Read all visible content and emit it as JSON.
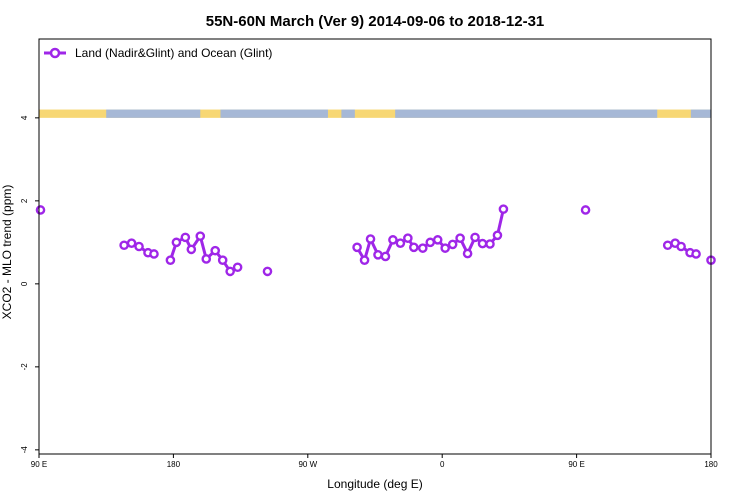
{
  "colors": {
    "series": "#9f26e8",
    "band_ocean": "#a6b8d6",
    "band_land": "#f7d774",
    "axis": "#000000",
    "background": "#ffffff"
  },
  "chart_data": {
    "type": "line",
    "title": "55N-60N March (Ver 9)   2014-09-06 to 2018-12-31",
    "xlabel": "Longitude (deg E)",
    "ylabel": "XCO2 - MLO trend (ppm)",
    "x_ticks": [
      {
        "value": 90,
        "label": "90 E"
      },
      {
        "value": 180,
        "label": "180"
      },
      {
        "value": 270,
        "label": "90 W"
      },
      {
        "value": 360,
        "label": "0"
      },
      {
        "value": 450,
        "label": "90 E"
      },
      {
        "value": 540,
        "label": "180"
      }
    ],
    "y_ticks": [
      {
        "value": -4,
        "label": "-4"
      },
      {
        "value": -2,
        "label": "-2"
      },
      {
        "value": 0,
        "label": "0"
      },
      {
        "value": 2,
        "label": "2"
      },
      {
        "value": 4,
        "label": "4"
      }
    ],
    "xlim": [
      90,
      540
    ],
    "ylim": [
      -4.1,
      5.9
    ],
    "legend": {
      "position": "top-left",
      "entries": [
        "Land (Nadir&Glint) and Ocean (Glint)"
      ]
    },
    "land_ocean_band": {
      "y_bottom": 4.0,
      "y_top": 4.2
    },
    "series": [
      {
        "name": "Land (Nadir&Glint) and Ocean (Glint)",
        "segments": [
          [
            [
              91,
              1.78
            ]
          ],
          [
            [
              147,
              0.93
            ],
            [
              152,
              0.98
            ],
            [
              157,
              0.9
            ],
            [
              163,
              0.75
            ],
            [
              167,
              0.72
            ]
          ],
          [
            [
              178,
              0.57
            ],
            [
              182,
              1.0
            ],
            [
              188,
              1.12
            ],
            [
              192,
              0.83
            ],
            [
              198,
              1.15
            ],
            [
              202,
              0.6
            ],
            [
              208,
              0.8
            ],
            [
              213,
              0.57
            ],
            [
              218,
              0.3
            ],
            [
              223,
              0.4
            ]
          ],
          [
            [
              243,
              0.3
            ]
          ],
          [
            [
              303,
              0.88
            ],
            [
              308,
              0.57
            ],
            [
              312,
              1.08
            ],
            [
              317,
              0.7
            ],
            [
              322,
              0.66
            ],
            [
              327,
              1.06
            ],
            [
              332,
              0.98
            ],
            [
              337,
              1.1
            ],
            [
              341,
              0.88
            ],
            [
              347,
              0.86
            ],
            [
              352,
              1.0
            ],
            [
              357,
              1.06
            ],
            [
              362,
              0.86
            ],
            [
              367,
              0.95
            ],
            [
              372,
              1.1
            ],
            [
              377,
              0.73
            ],
            [
              382,
              1.12
            ],
            [
              387,
              0.97
            ],
            [
              392,
              0.96
            ],
            [
              397,
              1.17
            ],
            [
              401,
              1.8
            ]
          ],
          [
            [
              456,
              1.78
            ]
          ],
          [
            [
              511,
              0.93
            ],
            [
              516,
              0.98
            ],
            [
              520,
              0.9
            ],
            [
              526,
              0.75
            ],
            [
              530,
              0.72
            ]
          ],
          [
            [
              540,
              0.57
            ]
          ]
        ]
      }
    ]
  }
}
